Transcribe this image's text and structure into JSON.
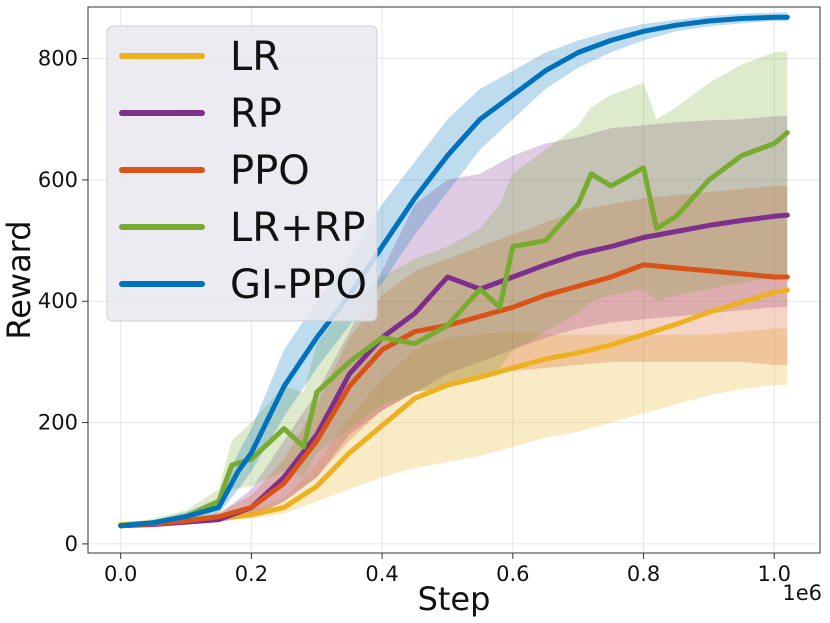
{
  "chart_data": {
    "type": "line",
    "xlabel": "Step",
    "ylabel": "Reward",
    "x_exponent_label": "1e6",
    "xlim": [
      -0.05,
      1.07
    ],
    "ylim": [
      -15,
      885
    ],
    "xticks": [
      0.0,
      0.2,
      0.4,
      0.6,
      0.8,
      1.0
    ],
    "xtick_labels": [
      "0.0",
      "0.2",
      "0.4",
      "0.6",
      "0.8",
      "1.0"
    ],
    "yticks": [
      0,
      200,
      400,
      600,
      800
    ],
    "ytick_labels": [
      "0",
      "200",
      "400",
      "600",
      "800"
    ],
    "grid": true,
    "legend_position": "top-left",
    "series": [
      {
        "name": "LR",
        "color": "#EDB120",
        "x": [
          0.0,
          0.05,
          0.1,
          0.15,
          0.2,
          0.25,
          0.3,
          0.35,
          0.4,
          0.45,
          0.5,
          0.55,
          0.6,
          0.65,
          0.7,
          0.75,
          0.8,
          0.85,
          0.9,
          0.95,
          1.0,
          1.02
        ],
        "mean": [
          32,
          35,
          38,
          42,
          48,
          60,
          95,
          150,
          195,
          240,
          262,
          275,
          290,
          305,
          315,
          328,
          345,
          362,
          382,
          398,
          415,
          418
        ],
        "lower": [
          30,
          32,
          34,
          37,
          42,
          50,
          70,
          90,
          110,
          125,
          135,
          145,
          160,
          175,
          185,
          200,
          215,
          230,
          245,
          255,
          262,
          262
        ],
        "upper": [
          34,
          38,
          42,
          46,
          56,
          75,
          130,
          210,
          270,
          320,
          340,
          345,
          350,
          345,
          345,
          345,
          345,
          345,
          345,
          350,
          355,
          355
        ]
      },
      {
        "name": "RP",
        "color": "#7E2F8E",
        "x": [
          0.0,
          0.05,
          0.1,
          0.15,
          0.2,
          0.25,
          0.3,
          0.35,
          0.4,
          0.45,
          0.5,
          0.55,
          0.6,
          0.65,
          0.7,
          0.75,
          0.8,
          0.85,
          0.9,
          0.95,
          1.0,
          1.02
        ],
        "mean": [
          30,
          32,
          36,
          40,
          60,
          110,
          180,
          280,
          340,
          380,
          440,
          420,
          440,
          460,
          478,
          490,
          505,
          515,
          525,
          533,
          540,
          542
        ],
        "lower": [
          28,
          30,
          33,
          36,
          45,
          70,
          110,
          180,
          220,
          250,
          280,
          300,
          320,
          340,
          355,
          365,
          370,
          375,
          380,
          385,
          390,
          390
        ],
        "upper": [
          32,
          35,
          40,
          48,
          90,
          170,
          250,
          350,
          450,
          560,
          600,
          610,
          640,
          660,
          670,
          685,
          690,
          695,
          698,
          700,
          705,
          705
        ]
      },
      {
        "name": "PPO",
        "color": "#D95319",
        "x": [
          0.0,
          0.05,
          0.1,
          0.15,
          0.2,
          0.25,
          0.3,
          0.35,
          0.4,
          0.45,
          0.5,
          0.55,
          0.6,
          0.65,
          0.7,
          0.75,
          0.8,
          0.85,
          0.9,
          0.95,
          1.0,
          1.02
        ],
        "mean": [
          30,
          33,
          38,
          45,
          60,
          100,
          170,
          260,
          320,
          350,
          360,
          375,
          390,
          410,
          425,
          440,
          460,
          455,
          450,
          445,
          440,
          440
        ],
        "lower": [
          28,
          31,
          34,
          38,
          45,
          70,
          110,
          170,
          220,
          250,
          260,
          275,
          285,
          290,
          295,
          300,
          300,
          300,
          300,
          300,
          295,
          295
        ],
        "upper": [
          32,
          36,
          42,
          52,
          80,
          140,
          230,
          340,
          410,
          450,
          470,
          490,
          510,
          530,
          550,
          560,
          570,
          575,
          580,
          585,
          590,
          590
        ]
      },
      {
        "name": "LR+RP",
        "color": "#77AC30",
        "x": [
          0.0,
          0.05,
          0.1,
          0.15,
          0.17,
          0.2,
          0.25,
          0.28,
          0.3,
          0.35,
          0.4,
          0.45,
          0.5,
          0.55,
          0.58,
          0.6,
          0.65,
          0.7,
          0.72,
          0.75,
          0.8,
          0.82,
          0.85,
          0.9,
          0.95,
          1.0,
          1.02
        ],
        "mean": [
          30,
          35,
          45,
          70,
          130,
          140,
          190,
          160,
          250,
          300,
          340,
          330,
          360,
          420,
          390,
          490,
          500,
          560,
          610,
          590,
          620,
          520,
          540,
          600,
          640,
          660,
          678
        ],
        "lower": [
          28,
          30,
          38,
          55,
          90,
          95,
          120,
          110,
          150,
          190,
          230,
          250,
          260,
          270,
          290,
          320,
          350,
          380,
          400,
          410,
          420,
          400,
          410,
          420,
          430,
          440,
          440
        ],
        "upper": [
          32,
          42,
          55,
          90,
          170,
          200,
          260,
          250,
          330,
          400,
          440,
          470,
          490,
          520,
          560,
          610,
          650,
          690,
          720,
          740,
          760,
          700,
          720,
          760,
          790,
          810,
          812
        ]
      },
      {
        "name": "GI-PPO",
        "color": "#0072BD",
        "x": [
          0.0,
          0.05,
          0.1,
          0.15,
          0.18,
          0.2,
          0.25,
          0.3,
          0.35,
          0.4,
          0.45,
          0.5,
          0.55,
          0.6,
          0.65,
          0.7,
          0.75,
          0.8,
          0.85,
          0.9,
          0.95,
          1.0,
          1.02
        ],
        "mean": [
          30,
          35,
          45,
          60,
          120,
          150,
          260,
          340,
          410,
          490,
          570,
          640,
          700,
          740,
          780,
          810,
          830,
          845,
          855,
          862,
          866,
          868,
          868
        ],
        "lower": [
          28,
          31,
          38,
          50,
          90,
          120,
          210,
          290,
          360,
          430,
          510,
          580,
          650,
          700,
          750,
          785,
          810,
          830,
          845,
          853,
          858,
          862,
          862
        ],
        "upper": [
          32,
          39,
          52,
          75,
          150,
          190,
          320,
          400,
          470,
          560,
          630,
          700,
          750,
          780,
          810,
          830,
          845,
          857,
          864,
          870,
          874,
          876,
          876
        ]
      }
    ]
  }
}
